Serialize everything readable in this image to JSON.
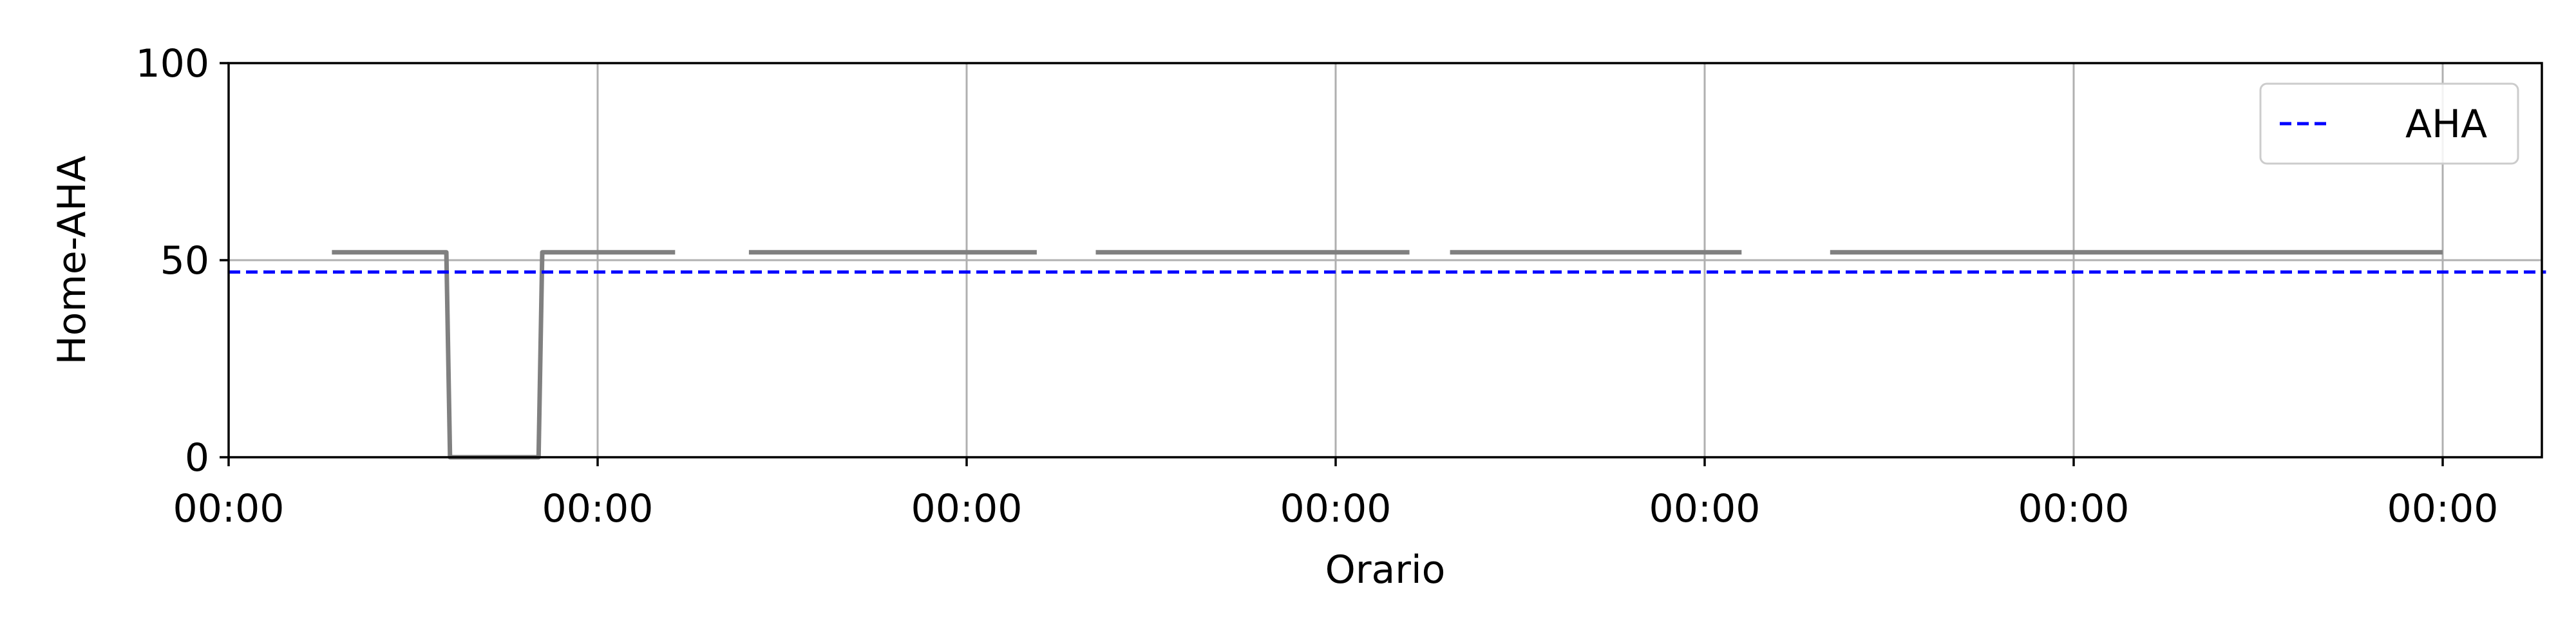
{
  "chart_data": {
    "type": "line",
    "title": "",
    "xlabel": "Orario",
    "ylabel": "Home-AHA",
    "xlim": [
      0,
      6.28
    ],
    "ylim": [
      0,
      100
    ],
    "grid": true,
    "legend_position": "top-right",
    "x_ticks": [
      {
        "x": 0,
        "label": "00:00"
      },
      {
        "x": 1,
        "label": "00:00"
      },
      {
        "x": 2,
        "label": "00:00"
      },
      {
        "x": 3,
        "label": "00:00"
      },
      {
        "x": 4,
        "label": "00:00"
      },
      {
        "x": 5,
        "label": "00:00"
      },
      {
        "x": 6,
        "label": "00:00"
      }
    ],
    "y_ticks": [
      {
        "y": 0,
        "label": "0"
      },
      {
        "y": 50,
        "label": "50"
      },
      {
        "y": 100,
        "label": "100"
      }
    ],
    "series": [
      {
        "name": "",
        "color": "#808080",
        "segments": [
          [
            [
              0.28,
              52
            ],
            [
              0.59,
              52
            ],
            [
              0.6,
              0
            ],
            [
              0.84,
              0
            ],
            [
              0.85,
              52
            ],
            [
              1.21,
              52
            ]
          ],
          [
            [
              1.41,
              52
            ],
            [
              2.19,
              52
            ]
          ],
          [
            [
              2.35,
              52
            ],
            [
              3.2,
              52
            ]
          ],
          [
            [
              3.31,
              52
            ],
            [
              4.1,
              52
            ]
          ],
          [
            [
              4.34,
              52
            ],
            [
              6.0,
              52
            ]
          ]
        ]
      },
      {
        "name": "AHA",
        "color": "#0000ff",
        "style": "dashed",
        "segments": [
          [
            [
              0,
              47
            ],
            [
              6.28,
              47
            ]
          ]
        ]
      }
    ],
    "legend": [
      {
        "label": "AHA",
        "color": "#0000ff",
        "style": "dashed"
      }
    ]
  }
}
